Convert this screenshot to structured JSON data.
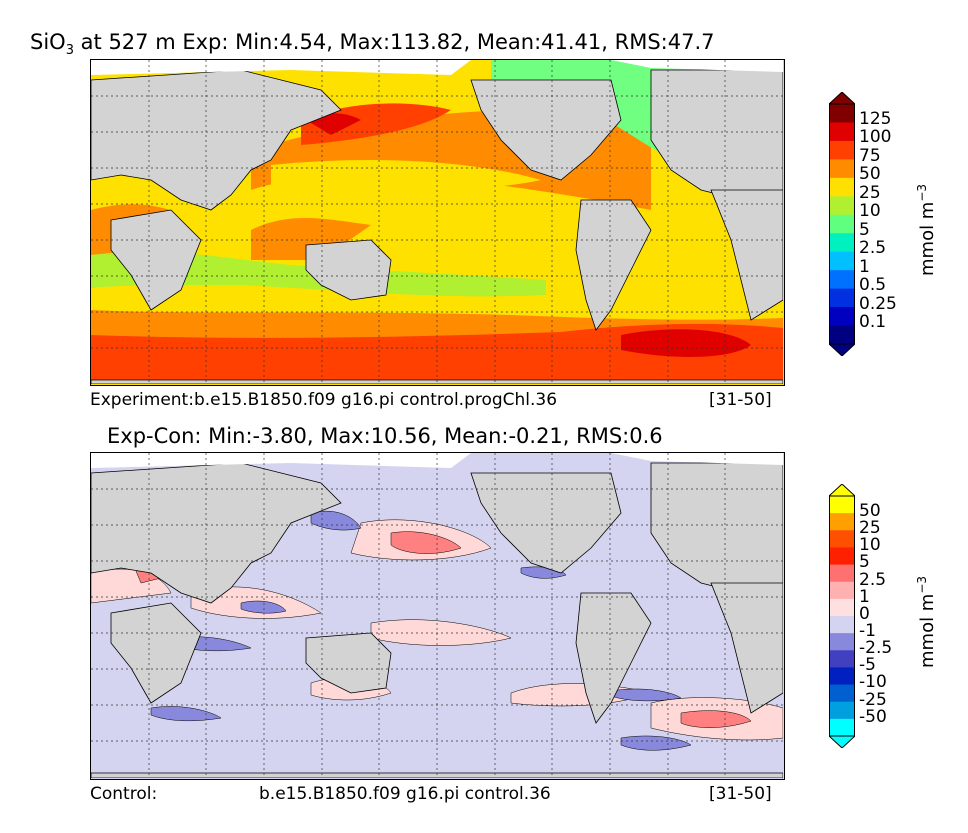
{
  "top_panel": {
    "title_prefix": "SiO",
    "title_sub": "3",
    "title_rest": " at 527 m Exp: Min:4.54, Max:113.82, Mean:41.41, RMS:47.7",
    "caption_left": "Experiment:b.e15.B1850.f09 g16.pi control.progChl.36",
    "caption_right": "[31-50]",
    "colorbar": {
      "levels": [
        "125",
        "100",
        "75",
        "50",
        "25",
        "10",
        "5",
        "2.5",
        "1",
        "0.5",
        "0.25",
        "0.1"
      ],
      "colors": [
        "#800000",
        "#e00000",
        "#ff4000",
        "#ff8c00",
        "#ffe000",
        "#b0f030",
        "#60ff80",
        "#00f0c0",
        "#00c0ff",
        "#0070ff",
        "#0030e0",
        "#0000c0",
        "#000080"
      ],
      "units_base": "mmol m",
      "units_exp": "−3"
    }
  },
  "bottom_panel": {
    "title": "Exp-Con: Min:-3.80, Max:10.56, Mean:-0.21, RMS:0.6",
    "caption_left": "Control:",
    "caption_center": "b.e15.B1850.f09 g16.pi control.36",
    "caption_right": "[31-50]",
    "colorbar": {
      "levels": [
        "50",
        "25",
        "10",
        "5",
        "2.5",
        "1",
        "0",
        "-1",
        "-2.5",
        "-5",
        "-10",
        "-25",
        "-50"
      ],
      "colors": [
        "#ffff00",
        "#ffa000",
        "#ff5000",
        "#ff2000",
        "#ff7070",
        "#ffb0b0",
        "#ffe0e0",
        "#d4d4f0",
        "#8888dd",
        "#4040c0",
        "#0020c0",
        "#0060d0",
        "#00a0e0",
        "#00ffff"
      ],
      "units_base": "mmol m",
      "units_exp": "−3"
    }
  }
}
